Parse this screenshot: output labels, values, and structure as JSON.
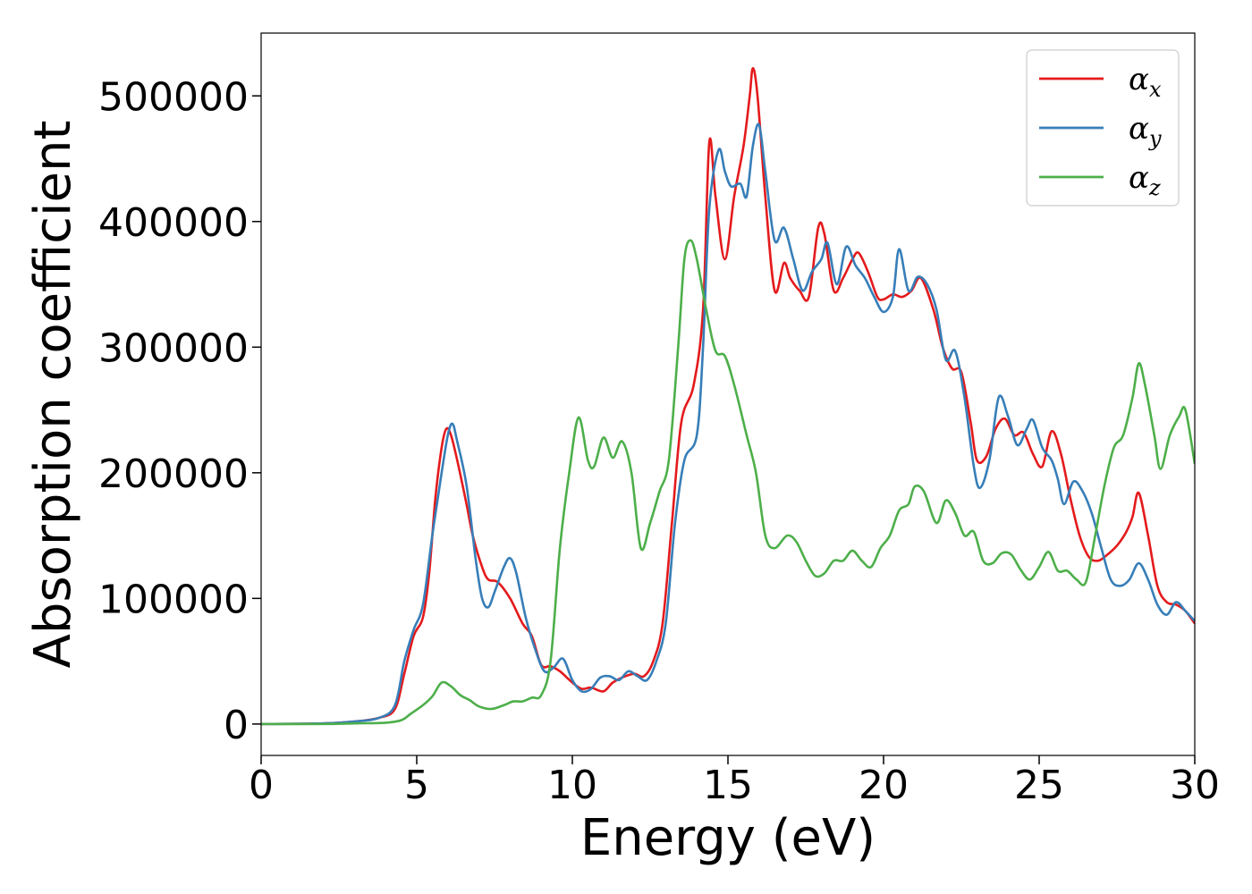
{
  "chart_data": {
    "type": "line",
    "title": "",
    "xlabel": "Energy (eV)",
    "ylabel": "Absorption coefficient",
    "xlim": [
      0,
      30
    ],
    "ylim": [
      -25000,
      550000
    ],
    "x_ticks": [
      0,
      5,
      10,
      15,
      20,
      25,
      30
    ],
    "x_tick_labels": [
      "0",
      "5",
      "10",
      "15",
      "20",
      "25",
      "30"
    ],
    "y_ticks": [
      0,
      100000,
      200000,
      300000,
      400000,
      500000
    ],
    "y_tick_labels": [
      "0",
      "100000",
      "200000",
      "300000",
      "400000",
      "500000"
    ],
    "grid": false,
    "legend_position": "top-right",
    "series": [
      {
        "name": "α_x",
        "legend_symbol": "α",
        "legend_sub": "x",
        "color": "#e41a1c",
        "points": [
          [
            0,
            0
          ],
          [
            2,
            500
          ],
          [
            3,
            2000
          ],
          [
            3.8,
            5000
          ],
          [
            4.3,
            12000
          ],
          [
            4.6,
            40000
          ],
          [
            4.9,
            70000
          ],
          [
            5.2,
            85000
          ],
          [
            5.4,
            120000
          ],
          [
            5.6,
            180000
          ],
          [
            5.8,
            220000
          ],
          [
            5.95,
            235000
          ],
          [
            6.1,
            230000
          ],
          [
            6.3,
            210000
          ],
          [
            6.6,
            175000
          ],
          [
            6.8,
            150000
          ],
          [
            7.1,
            125000
          ],
          [
            7.3,
            115000
          ],
          [
            7.6,
            113000
          ],
          [
            8.0,
            100000
          ],
          [
            8.4,
            80000
          ],
          [
            8.7,
            70000
          ],
          [
            9.0,
            47000
          ],
          [
            9.3,
            46000
          ],
          [
            9.6,
            42000
          ],
          [
            10.0,
            33000
          ],
          [
            10.3,
            28000
          ],
          [
            10.6,
            29000
          ],
          [
            11.0,
            26000
          ],
          [
            11.3,
            33000
          ],
          [
            11.7,
            38000
          ],
          [
            12.0,
            40000
          ],
          [
            12.3,
            38000
          ],
          [
            12.6,
            50000
          ],
          [
            12.9,
            80000
          ],
          [
            13.2,
            160000
          ],
          [
            13.5,
            240000
          ],
          [
            13.9,
            270000
          ],
          [
            14.2,
            330000
          ],
          [
            14.4,
            463000
          ],
          [
            14.6,
            420000
          ],
          [
            14.9,
            370000
          ],
          [
            15.2,
            420000
          ],
          [
            15.5,
            460000
          ],
          [
            15.7,
            500000
          ],
          [
            15.8,
            522000
          ],
          [
            15.95,
            500000
          ],
          [
            16.2,
            420000
          ],
          [
            16.5,
            345000
          ],
          [
            16.8,
            367000
          ],
          [
            17.0,
            355000
          ],
          [
            17.3,
            345000
          ],
          [
            17.6,
            340000
          ],
          [
            17.9,
            395000
          ],
          [
            18.1,
            390000
          ],
          [
            18.4,
            345000
          ],
          [
            18.7,
            355000
          ],
          [
            19.0,
            370000
          ],
          [
            19.2,
            375000
          ],
          [
            19.5,
            360000
          ],
          [
            19.8,
            340000
          ],
          [
            20.0,
            338000
          ],
          [
            20.3,
            342000
          ],
          [
            20.6,
            340000
          ],
          [
            20.9,
            345000
          ],
          [
            21.2,
            355000
          ],
          [
            21.6,
            330000
          ],
          [
            21.9,
            300000
          ],
          [
            22.2,
            283000
          ],
          [
            22.5,
            280000
          ],
          [
            22.8,
            240000
          ],
          [
            23.0,
            210000
          ],
          [
            23.3,
            213000
          ],
          [
            23.6,
            235000
          ],
          [
            23.9,
            243000
          ],
          [
            24.2,
            230000
          ],
          [
            24.5,
            232000
          ],
          [
            24.8,
            215000
          ],
          [
            25.1,
            205000
          ],
          [
            25.4,
            233000
          ],
          [
            25.7,
            215000
          ],
          [
            26.0,
            180000
          ],
          [
            26.3,
            150000
          ],
          [
            26.6,
            133000
          ],
          [
            26.9,
            130000
          ],
          [
            27.2,
            135000
          ],
          [
            27.5,
            142000
          ],
          [
            27.8,
            153000
          ],
          [
            28.0,
            165000
          ],
          [
            28.2,
            184000
          ],
          [
            28.5,
            150000
          ],
          [
            28.8,
            110000
          ],
          [
            29.1,
            97000
          ],
          [
            29.4,
            95000
          ],
          [
            29.7,
            90000
          ],
          [
            30.0,
            80000
          ]
        ]
      },
      {
        "name": "α_y",
        "legend_symbol": "α",
        "legend_sub": "y",
        "color": "#377eb8",
        "points": [
          [
            0,
            0
          ],
          [
            2,
            500
          ],
          [
            3,
            2000
          ],
          [
            3.8,
            5000
          ],
          [
            4.3,
            15000
          ],
          [
            4.6,
            50000
          ],
          [
            4.9,
            75000
          ],
          [
            5.2,
            95000
          ],
          [
            5.5,
            150000
          ],
          [
            5.8,
            200000
          ],
          [
            6.0,
            230000
          ],
          [
            6.15,
            239000
          ],
          [
            6.3,
            225000
          ],
          [
            6.6,
            190000
          ],
          [
            6.9,
            130000
          ],
          [
            7.1,
            100000
          ],
          [
            7.3,
            93000
          ],
          [
            7.5,
            105000
          ],
          [
            7.8,
            125000
          ],
          [
            8.0,
            132000
          ],
          [
            8.2,
            120000
          ],
          [
            8.5,
            85000
          ],
          [
            8.8,
            60000
          ],
          [
            9.1,
            42000
          ],
          [
            9.4,
            45000
          ],
          [
            9.7,
            52000
          ],
          [
            10.0,
            35000
          ],
          [
            10.3,
            26000
          ],
          [
            10.6,
            28000
          ],
          [
            10.9,
            37000
          ],
          [
            11.2,
            38000
          ],
          [
            11.5,
            35000
          ],
          [
            11.8,
            42000
          ],
          [
            12.1,
            38000
          ],
          [
            12.4,
            35000
          ],
          [
            12.7,
            50000
          ],
          [
            13.0,
            80000
          ],
          [
            13.3,
            160000
          ],
          [
            13.6,
            210000
          ],
          [
            14.0,
            230000
          ],
          [
            14.2,
            300000
          ],
          [
            14.4,
            410000
          ],
          [
            14.7,
            457000
          ],
          [
            14.9,
            440000
          ],
          [
            15.1,
            428000
          ],
          [
            15.4,
            430000
          ],
          [
            15.6,
            420000
          ],
          [
            15.8,
            460000
          ],
          [
            16.0,
            477000
          ],
          [
            16.2,
            440000
          ],
          [
            16.5,
            385000
          ],
          [
            16.8,
            395000
          ],
          [
            17.1,
            370000
          ],
          [
            17.4,
            345000
          ],
          [
            17.7,
            360000
          ],
          [
            18.0,
            370000
          ],
          [
            18.2,
            383000
          ],
          [
            18.5,
            350000
          ],
          [
            18.8,
            380000
          ],
          [
            19.1,
            365000
          ],
          [
            19.4,
            355000
          ],
          [
            19.7,
            340000
          ],
          [
            20.0,
            328000
          ],
          [
            20.3,
            340000
          ],
          [
            20.5,
            378000
          ],
          [
            20.8,
            345000
          ],
          [
            21.1,
            356000
          ],
          [
            21.4,
            350000
          ],
          [
            21.7,
            330000
          ],
          [
            22.0,
            290000
          ],
          [
            22.3,
            297000
          ],
          [
            22.6,
            260000
          ],
          [
            22.9,
            205000
          ],
          [
            23.1,
            188000
          ],
          [
            23.4,
            210000
          ],
          [
            23.7,
            260000
          ],
          [
            24.0,
            245000
          ],
          [
            24.3,
            222000
          ],
          [
            24.6,
            235000
          ],
          [
            24.8,
            242000
          ],
          [
            25.1,
            220000
          ],
          [
            25.4,
            210000
          ],
          [
            25.6,
            195000
          ],
          [
            25.8,
            175000
          ],
          [
            26.1,
            193000
          ],
          [
            26.4,
            185000
          ],
          [
            26.7,
            167000
          ],
          [
            27.0,
            140000
          ],
          [
            27.3,
            115000
          ],
          [
            27.6,
            110000
          ],
          [
            27.9,
            115000
          ],
          [
            28.2,
            128000
          ],
          [
            28.5,
            115000
          ],
          [
            28.8,
            95000
          ],
          [
            29.1,
            87000
          ],
          [
            29.4,
            97000
          ],
          [
            29.7,
            90000
          ],
          [
            30.0,
            82000
          ]
        ]
      },
      {
        "name": "α_z",
        "legend_symbol": "α",
        "legend_sub": "z",
        "color": "#4daf4a",
        "points": [
          [
            0,
            0
          ],
          [
            2,
            0
          ],
          [
            3,
            500
          ],
          [
            4.0,
            1000
          ],
          [
            4.5,
            3000
          ],
          [
            4.8,
            8000
          ],
          [
            5.2,
            15000
          ],
          [
            5.5,
            22000
          ],
          [
            5.8,
            33000
          ],
          [
            6.1,
            30000
          ],
          [
            6.4,
            23000
          ],
          [
            6.7,
            19000
          ],
          [
            7.0,
            14000
          ],
          [
            7.4,
            12000
          ],
          [
            7.8,
            15000
          ],
          [
            8.1,
            18000
          ],
          [
            8.4,
            18000
          ],
          [
            8.7,
            21000
          ],
          [
            9.0,
            23000
          ],
          [
            9.3,
            50000
          ],
          [
            9.6,
            140000
          ],
          [
            9.9,
            200000
          ],
          [
            10.2,
            244000
          ],
          [
            10.5,
            210000
          ],
          [
            10.7,
            205000
          ],
          [
            11.0,
            228000
          ],
          [
            11.3,
            212000
          ],
          [
            11.6,
            225000
          ],
          [
            11.9,
            200000
          ],
          [
            12.2,
            140000
          ],
          [
            12.5,
            160000
          ],
          [
            12.8,
            185000
          ],
          [
            13.1,
            210000
          ],
          [
            13.4,
            300000
          ],
          [
            13.6,
            370000
          ],
          [
            13.8,
            385000
          ],
          [
            14.0,
            370000
          ],
          [
            14.3,
            330000
          ],
          [
            14.6,
            297000
          ],
          [
            14.9,
            293000
          ],
          [
            15.2,
            270000
          ],
          [
            15.6,
            230000
          ],
          [
            15.9,
            200000
          ],
          [
            16.2,
            150000
          ],
          [
            16.5,
            140000
          ],
          [
            16.9,
            150000
          ],
          [
            17.2,
            145000
          ],
          [
            17.5,
            130000
          ],
          [
            17.8,
            118000
          ],
          [
            18.1,
            120000
          ],
          [
            18.4,
            130000
          ],
          [
            18.7,
            130000
          ],
          [
            19.0,
            138000
          ],
          [
            19.3,
            130000
          ],
          [
            19.6,
            125000
          ],
          [
            19.9,
            140000
          ],
          [
            20.2,
            150000
          ],
          [
            20.5,
            170000
          ],
          [
            20.8,
            175000
          ],
          [
            21.0,
            189000
          ],
          [
            21.3,
            185000
          ],
          [
            21.7,
            160000
          ],
          [
            22.0,
            178000
          ],
          [
            22.3,
            168000
          ],
          [
            22.6,
            150000
          ],
          [
            22.9,
            153000
          ],
          [
            23.2,
            130000
          ],
          [
            23.5,
            128000
          ],
          [
            23.8,
            136000
          ],
          [
            24.1,
            135000
          ],
          [
            24.4,
            123000
          ],
          [
            24.7,
            115000
          ],
          [
            25.0,
            125000
          ],
          [
            25.3,
            137000
          ],
          [
            25.6,
            122000
          ],
          [
            25.9,
            122000
          ],
          [
            26.2,
            115000
          ],
          [
            26.5,
            113000
          ],
          [
            26.8,
            150000
          ],
          [
            27.1,
            190000
          ],
          [
            27.4,
            220000
          ],
          [
            27.7,
            230000
          ],
          [
            28.0,
            260000
          ],
          [
            28.2,
            287000
          ],
          [
            28.4,
            270000
          ],
          [
            28.7,
            230000
          ],
          [
            28.9,
            203000
          ],
          [
            29.2,
            230000
          ],
          [
            29.5,
            245000
          ],
          [
            29.7,
            250000
          ],
          [
            30.0,
            207000
          ]
        ]
      }
    ]
  }
}
